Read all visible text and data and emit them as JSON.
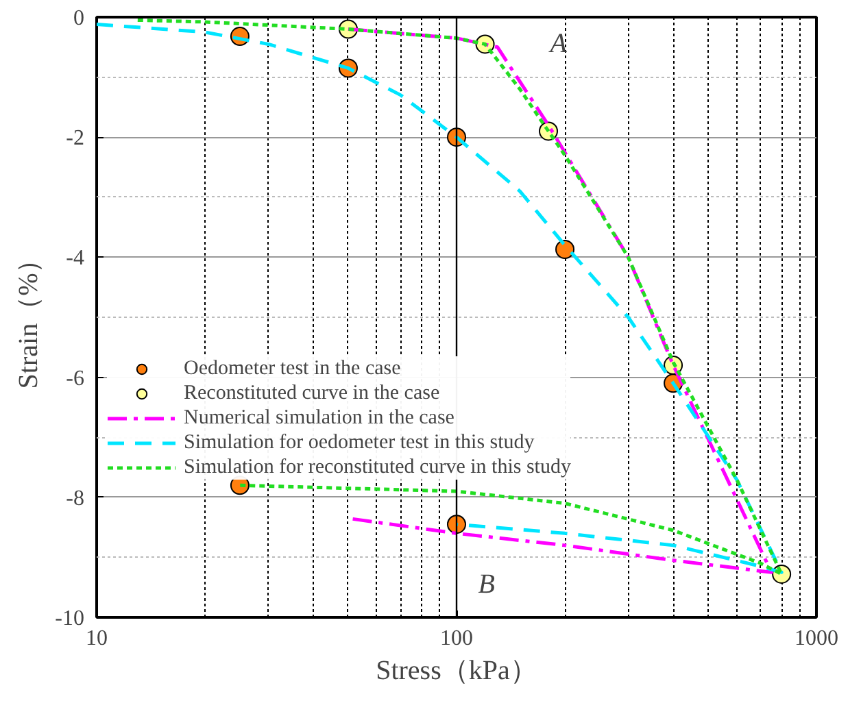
{
  "chart_data": {
    "type": "scatter",
    "xlabel": "Stress（kPa）",
    "ylabel": "Strain（%）",
    "log": "x",
    "xlim": [
      10,
      1000
    ],
    "xticks": [
      10,
      100,
      1000
    ],
    "ylim": [
      -10,
      0
    ],
    "yticks": [
      -10,
      -8,
      -6,
      -4,
      -2,
      0
    ],
    "grid": true,
    "legend": "left",
    "ref_lines": [
      {
        "axis": "x",
        "value": 100,
        "color": "#000000"
      }
    ],
    "series": [
      {
        "name": "Oedometer test in the case",
        "marker": "circle",
        "color": "#ff7f0e",
        "x": [
          25,
          50,
          100,
          200,
          400,
          25,
          100
        ],
        "values": [
          -0.32,
          -0.85,
          -2.0,
          -3.87,
          -6.1,
          -7.8,
          -8.45
        ]
      },
      {
        "name": "Reconstituted curve in the case",
        "marker": "circle",
        "color": "#ffff99",
        "x": [
          50,
          120,
          180,
          400,
          800
        ],
        "values": [
          -0.2,
          -0.45,
          -1.9,
          -5.8,
          -9.28
        ]
      },
      {
        "name": "Numerical simulation in the case",
        "type": "line",
        "line_style": "dashdot",
        "color": "#ff00ff",
        "x": [
          50,
          100,
          130,
          140,
          180,
          300,
          400,
          750,
          400,
          200,
          100,
          50
        ],
        "values": [
          -0.2,
          -0.35,
          -0.5,
          -0.8,
          -1.8,
          -4.0,
          -5.8,
          -9.25,
          -9.05,
          -8.8,
          -8.6,
          -8.35
        ]
      },
      {
        "name": "Simulation for oedometer test in this study",
        "type": "line",
        "line_style": "dashed",
        "color": "#00e5ff",
        "x": [
          10,
          20,
          30,
          50,
          70,
          100,
          150,
          200,
          300,
          400,
          600,
          800,
          700,
          400,
          200,
          100
        ],
        "values": [
          -0.12,
          -0.25,
          -0.45,
          -0.85,
          -1.3,
          -2.0,
          -2.9,
          -3.8,
          -5.0,
          -6.1,
          -7.7,
          -9.25,
          -9.15,
          -8.8,
          -8.6,
          -8.45
        ]
      },
      {
        "name": "Simulation for reconstituted curve in this study",
        "type": "line",
        "line_style": "dotted",
        "color": "#22dd22",
        "x": [
          13,
          20,
          50,
          100,
          120,
          150,
          180,
          200,
          300,
          400,
          600,
          800,
          700,
          400,
          200,
          100,
          25
        ],
        "values": [
          -0.05,
          -0.08,
          -0.2,
          -0.35,
          -0.45,
          -1.2,
          -1.9,
          -2.3,
          -4.0,
          -5.75,
          -7.7,
          -9.28,
          -9.1,
          -8.55,
          -8.1,
          -7.9,
          -7.8
        ]
      }
    ],
    "annotations": [
      "A",
      "B"
    ]
  }
}
